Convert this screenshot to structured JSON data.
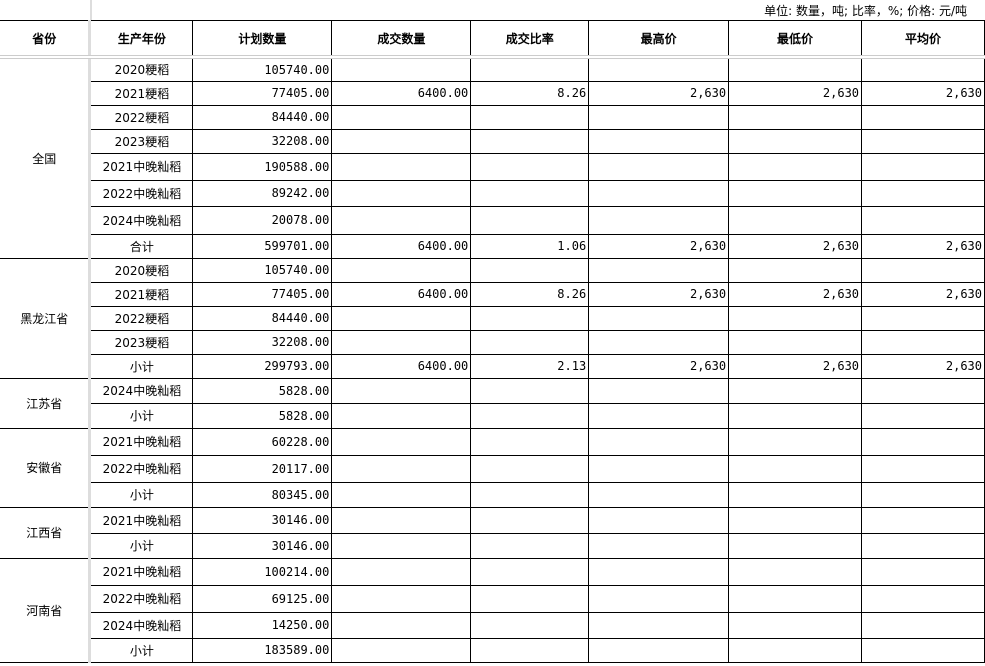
{
  "unit_note": "单位: 数量，吨; 比率，%; 价格: 元/吨",
  "headers": [
    "省份",
    "生产年份",
    "计划数量",
    "成交数量",
    "成交比率",
    "最高价",
    "最低价",
    "平均价"
  ],
  "groups": [
    {
      "province": "全国",
      "rows": [
        [
          "2020粳稻",
          "105740.00",
          "",
          "",
          "",
          "",
          ""
        ],
        [
          "2021粳稻",
          "77405.00",
          "6400.00",
          "8.26",
          "2,630",
          "2,630",
          "2,630"
        ],
        [
          "2022粳稻",
          "84440.00",
          "",
          "",
          "",
          "",
          ""
        ],
        [
          "2023粳稻",
          "32208.00",
          "",
          "",
          "",
          "",
          ""
        ],
        [
          "2021中晚籼稻",
          "190588.00",
          "",
          "",
          "",
          "",
          ""
        ],
        [
          "2022中晚籼稻",
          "89242.00",
          "",
          "",
          "",
          "",
          ""
        ],
        [
          "2024中晚籼稻",
          "20078.00",
          "",
          "",
          "",
          "",
          ""
        ],
        [
          "合计",
          "599701.00",
          "6400.00",
          "1.06",
          "2,630",
          "2,630",
          "2,630"
        ]
      ]
    },
    {
      "province": "黑龙江省",
      "rows": [
        [
          "2020粳稻",
          "105740.00",
          "",
          "",
          "",
          "",
          ""
        ],
        [
          "2021粳稻",
          "77405.00",
          "6400.00",
          "8.26",
          "2,630",
          "2,630",
          "2,630"
        ],
        [
          "2022粳稻",
          "84440.00",
          "",
          "",
          "",
          "",
          ""
        ],
        [
          "2023粳稻",
          "32208.00",
          "",
          "",
          "",
          "",
          ""
        ],
        [
          "小计",
          "299793.00",
          "6400.00",
          "2.13",
          "2,630",
          "2,630",
          "2,630"
        ]
      ]
    },
    {
      "province": "江苏省",
      "rows": [
        [
          "2024中晚籼稻",
          "5828.00",
          "",
          "",
          "",
          "",
          ""
        ],
        [
          "小计",
          "5828.00",
          "",
          "",
          "",
          "",
          ""
        ]
      ]
    },
    {
      "province": "安徽省",
      "rows": [
        [
          "2021中晚籼稻",
          "60228.00",
          "",
          "",
          "",
          "",
          ""
        ],
        [
          "2022中晚籼稻",
          "20117.00",
          "",
          "",
          "",
          "",
          ""
        ],
        [
          "小计",
          "80345.00",
          "",
          "",
          "",
          "",
          ""
        ]
      ]
    },
    {
      "province": "江西省",
      "rows": [
        [
          "2021中晚籼稻",
          "30146.00",
          "",
          "",
          "",
          "",
          ""
        ],
        [
          "小计",
          "30146.00",
          "",
          "",
          "",
          "",
          ""
        ]
      ]
    },
    {
      "province": "河南省",
      "rows": [
        [
          "2021中晚籼稻",
          "100214.00",
          "",
          "",
          "",
          "",
          ""
        ],
        [
          "2022中晚籼稻",
          "69125.00",
          "",
          "",
          "",
          "",
          ""
        ],
        [
          "2024中晚籼稻",
          "14250.00",
          "",
          "",
          "",
          "",
          ""
        ],
        [
          "小计",
          "183589.00",
          "",
          "",
          "",
          "",
          ""
        ]
      ]
    }
  ]
}
